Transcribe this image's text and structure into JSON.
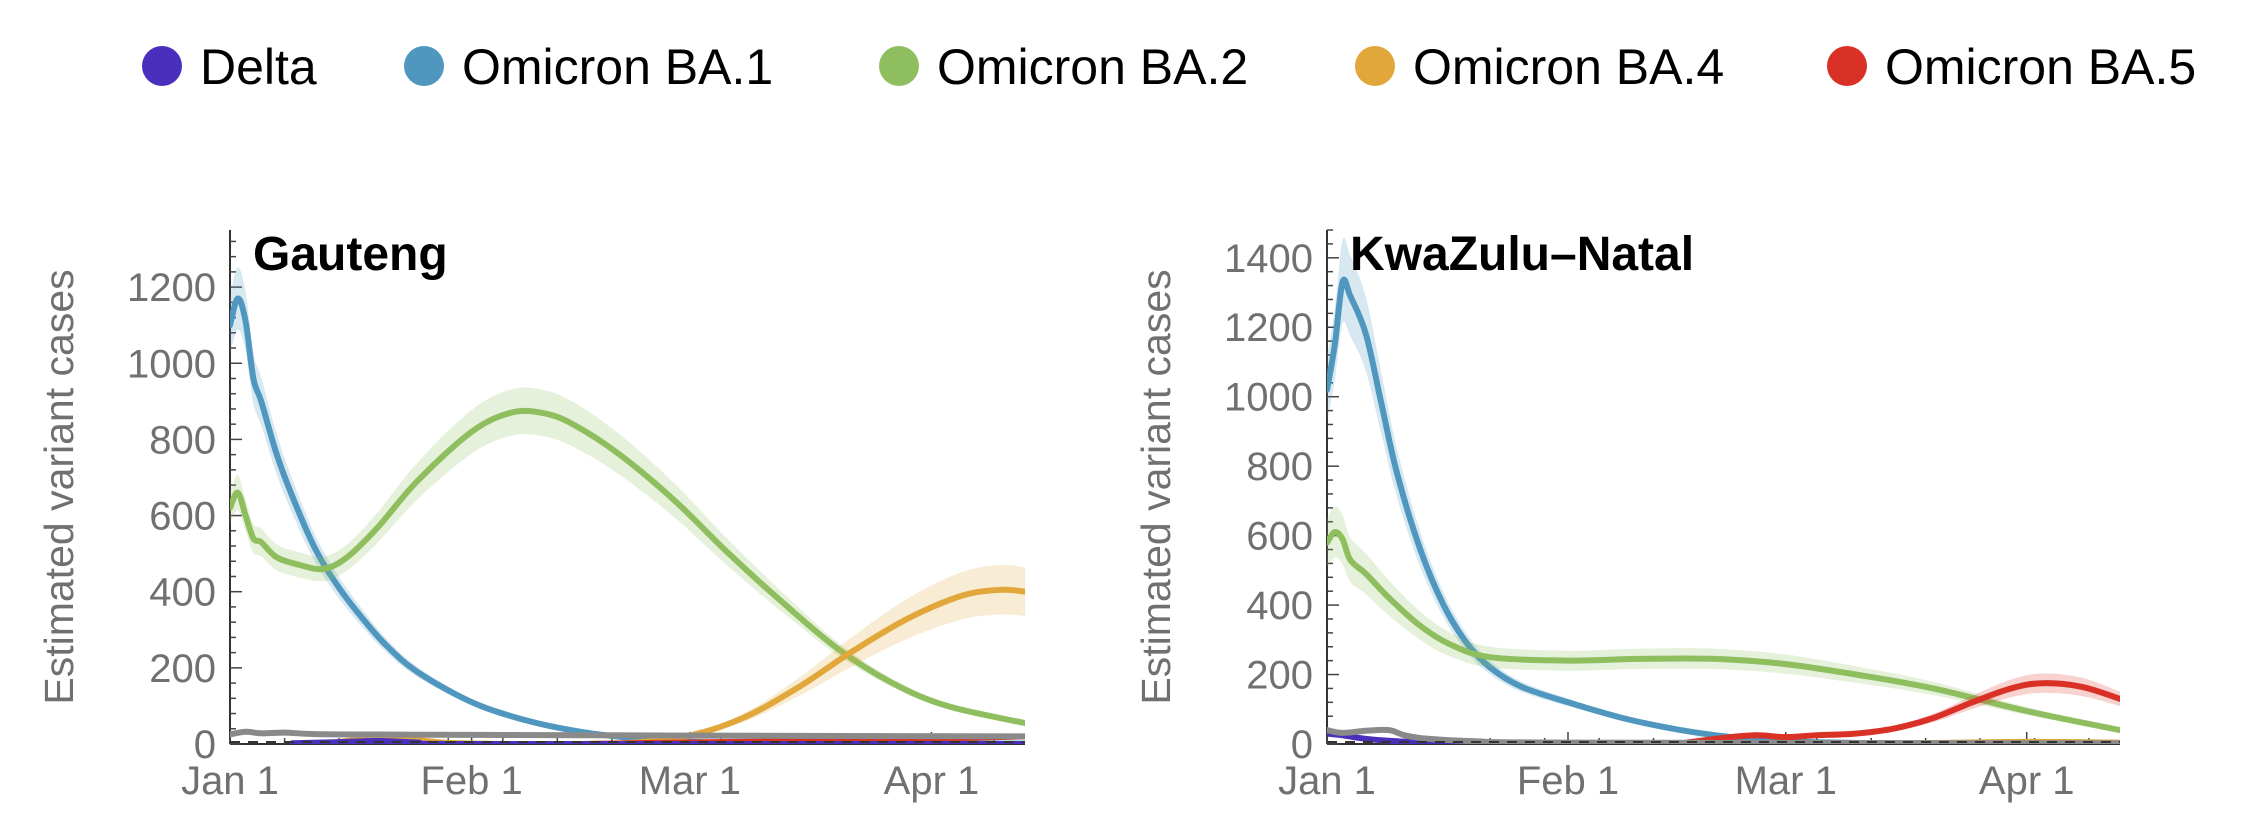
{
  "legend": {
    "placement": "top",
    "items": [
      {
        "label": "Delta",
        "color": "#4a2fbd"
      },
      {
        "label": "Omicron BA.1",
        "color": "#4f97bf"
      },
      {
        "label": "Omicron BA.2",
        "color": "#8fbe5f"
      },
      {
        "label": "Omicron BA.4",
        "color": "#e1a73b"
      },
      {
        "label": "Omicron BA.5",
        "color": "#d93126"
      }
    ]
  },
  "chart_data": [
    {
      "type": "line",
      "title": "Gauteng",
      "ylabel": "Estimated variant cases",
      "xlabel": "",
      "x_ticks": [
        {
          "label": "Jan 1",
          "date": "2022-01-01"
        },
        {
          "label": "Feb 1",
          "date": "2022-02-01"
        },
        {
          "label": "Mar 1",
          "date": "2022-03-01"
        },
        {
          "label": "Apr 1",
          "date": "2022-04-01"
        }
      ],
      "x_range": [
        "2022-01-01",
        "2022-04-13"
      ],
      "ylim": [
        0,
        1350
      ],
      "y_ticks": [
        0,
        200,
        400,
        600,
        800,
        1000,
        1200
      ],
      "grid": false,
      "series": [
        {
          "name": "Omicron BA.1",
          "color": "#4f97bf",
          "band": 0.07,
          "x": [
            "2022-01-01",
            "2022-01-02",
            "2022-01-03",
            "2022-01-04",
            "2022-01-05",
            "2022-01-07",
            "2022-01-09",
            "2022-01-12",
            "2022-01-15",
            "2022-01-18",
            "2022-01-21",
            "2022-01-25",
            "2022-02-01",
            "2022-02-08",
            "2022-02-15",
            "2022-02-22",
            "2022-03-01",
            "2022-03-08",
            "2022-03-15",
            "2022-04-01",
            "2022-04-13"
          ],
          "y": [
            1100,
            1170,
            1110,
            960,
            900,
            760,
            650,
            510,
            410,
            330,
            260,
            190,
            110,
            62,
            32,
            15,
            6,
            3,
            2,
            1,
            1
          ]
        },
        {
          "name": "Omicron BA.2",
          "color": "#8fbe5f",
          "band": 0.07,
          "x": [
            "2022-01-01",
            "2022-01-02",
            "2022-01-03",
            "2022-01-04",
            "2022-01-05",
            "2022-01-07",
            "2022-01-10",
            "2022-01-13",
            "2022-01-16",
            "2022-01-20",
            "2022-01-25",
            "2022-02-01",
            "2022-02-06",
            "2022-02-10",
            "2022-02-14",
            "2022-02-20",
            "2022-02-27",
            "2022-03-06",
            "2022-03-13",
            "2022-03-20",
            "2022-03-27",
            "2022-04-03",
            "2022-04-13"
          ],
          "y": [
            620,
            660,
            600,
            540,
            530,
            490,
            470,
            460,
            490,
            570,
            690,
            820,
            870,
            870,
            840,
            760,
            640,
            500,
            370,
            250,
            160,
            100,
            55
          ]
        },
        {
          "name": "Omicron BA.4",
          "color": "#e1a73b",
          "band": 0.16,
          "x": [
            "2022-01-13",
            "2022-01-17",
            "2022-01-21",
            "2022-01-25",
            "2022-01-29",
            "2022-02-05",
            "2022-02-15",
            "2022-02-22",
            "2022-03-01",
            "2022-03-08",
            "2022-03-15",
            "2022-03-22",
            "2022-03-29",
            "2022-04-05",
            "2022-04-10",
            "2022-04-13"
          ],
          "y": [
            0,
            10,
            12,
            10,
            3,
            0,
            0,
            4,
            22,
            70,
            150,
            245,
            330,
            390,
            405,
            400
          ]
        },
        {
          "name": "Omicron BA.5",
          "color": "#d93126",
          "band": 0.3,
          "x": [
            "2022-02-15",
            "2022-03-01",
            "2022-03-15",
            "2022-04-01",
            "2022-04-13"
          ],
          "y": [
            0,
            4,
            8,
            14,
            20
          ]
        },
        {
          "name": "Delta",
          "color": "#4a2fbd",
          "band": 0,
          "x": [
            "2022-01-09",
            "2022-01-15",
            "2022-01-20",
            "2022-01-25",
            "2022-02-01",
            "2022-04-13"
          ],
          "y": [
            2,
            5,
            8,
            4,
            0,
            0
          ]
        },
        {
          "name": "",
          "color": "#8a8a8a",
          "band": 0,
          "x": [
            "2022-01-01",
            "2022-01-03",
            "2022-01-05",
            "2022-01-08",
            "2022-01-12",
            "2022-01-20",
            "2022-02-01",
            "2022-03-01",
            "2022-04-13"
          ],
          "y": [
            25,
            32,
            28,
            30,
            26,
            25,
            24,
            22,
            20
          ]
        }
      ]
    },
    {
      "type": "line",
      "title": "KwaZulu–Natal",
      "ylabel": "Estimated variant cases",
      "xlabel": "",
      "x_ticks": [
        {
          "label": "Jan 1",
          "date": "2022-01-01"
        },
        {
          "label": "Feb 1",
          "date": "2022-02-01"
        },
        {
          "label": "Mar 1",
          "date": "2022-03-01"
        },
        {
          "label": "Apr 1",
          "date": "2022-04-01"
        }
      ],
      "x_range": [
        "2022-01-01",
        "2022-04-13"
      ],
      "ylim": [
        0,
        1480
      ],
      "y_ticks": [
        0,
        200,
        400,
        600,
        800,
        1000,
        1200,
        1400
      ],
      "grid": false,
      "series": [
        {
          "name": "Omicron BA.1",
          "color": "#4f97bf",
          "band": 0.09,
          "x": [
            "2022-01-01",
            "2022-01-02",
            "2022-01-03",
            "2022-01-04",
            "2022-01-06",
            "2022-01-08",
            "2022-01-10",
            "2022-01-13",
            "2022-01-16",
            "2022-01-19",
            "2022-01-22",
            "2022-01-26",
            "2022-02-01",
            "2022-02-08",
            "2022-02-15",
            "2022-02-22",
            "2022-03-01",
            "2022-03-08",
            "2022-03-15",
            "2022-04-01",
            "2022-04-13"
          ],
          "y": [
            1020,
            1150,
            1330,
            1290,
            1180,
            980,
            780,
            560,
            400,
            290,
            220,
            165,
            120,
            75,
            42,
            20,
            8,
            4,
            2,
            1,
            1
          ]
        },
        {
          "name": "Omicron BA.2",
          "color": "#8fbe5f",
          "band": 0.12,
          "x": [
            "2022-01-01",
            "2022-01-02",
            "2022-01-03",
            "2022-01-04",
            "2022-01-06",
            "2022-01-09",
            "2022-01-13",
            "2022-01-17",
            "2022-01-22",
            "2022-02-01",
            "2022-02-10",
            "2022-02-20",
            "2022-03-01",
            "2022-03-10",
            "2022-03-20",
            "2022-04-01",
            "2022-04-13"
          ],
          "y": [
            580,
            610,
            590,
            530,
            490,
            420,
            340,
            285,
            250,
            240,
            245,
            245,
            230,
            200,
            160,
            95,
            40
          ]
        },
        {
          "name": "Omicron BA.5",
          "color": "#d93126",
          "band": 0.16,
          "x": [
            "2022-02-15",
            "2022-02-20",
            "2022-02-25",
            "2022-03-01",
            "2022-03-05",
            "2022-03-10",
            "2022-03-15",
            "2022-03-20",
            "2022-03-25",
            "2022-03-30",
            "2022-04-03",
            "2022-04-08",
            "2022-04-13"
          ],
          "y": [
            0,
            15,
            25,
            20,
            25,
            30,
            45,
            75,
            120,
            160,
            175,
            165,
            130
          ]
        },
        {
          "name": "Omicron BA.4",
          "color": "#e1a73b",
          "band": 0,
          "x": [
            "2022-03-10",
            "2022-03-20",
            "2022-04-01",
            "2022-04-13"
          ],
          "y": [
            0,
            3,
            6,
            4
          ]
        },
        {
          "name": "Delta",
          "color": "#4a2fbd",
          "band": 0,
          "x": [
            "2022-01-01",
            "2022-01-03",
            "2022-01-06",
            "2022-01-10",
            "2022-01-15",
            "2022-01-20",
            "2022-02-01",
            "2022-04-13"
          ],
          "y": [
            30,
            25,
            15,
            8,
            4,
            2,
            0,
            0
          ]
        },
        {
          "name": "",
          "color": "#8a8a8a",
          "band": 0,
          "x": [
            "2022-01-01",
            "2022-01-03",
            "2022-01-06",
            "2022-01-09",
            "2022-01-11",
            "2022-01-14",
            "2022-01-20",
            "2022-02-01",
            "2022-04-13"
          ],
          "y": [
            40,
            32,
            38,
            40,
            25,
            15,
            8,
            4,
            2
          ]
        }
      ]
    }
  ]
}
